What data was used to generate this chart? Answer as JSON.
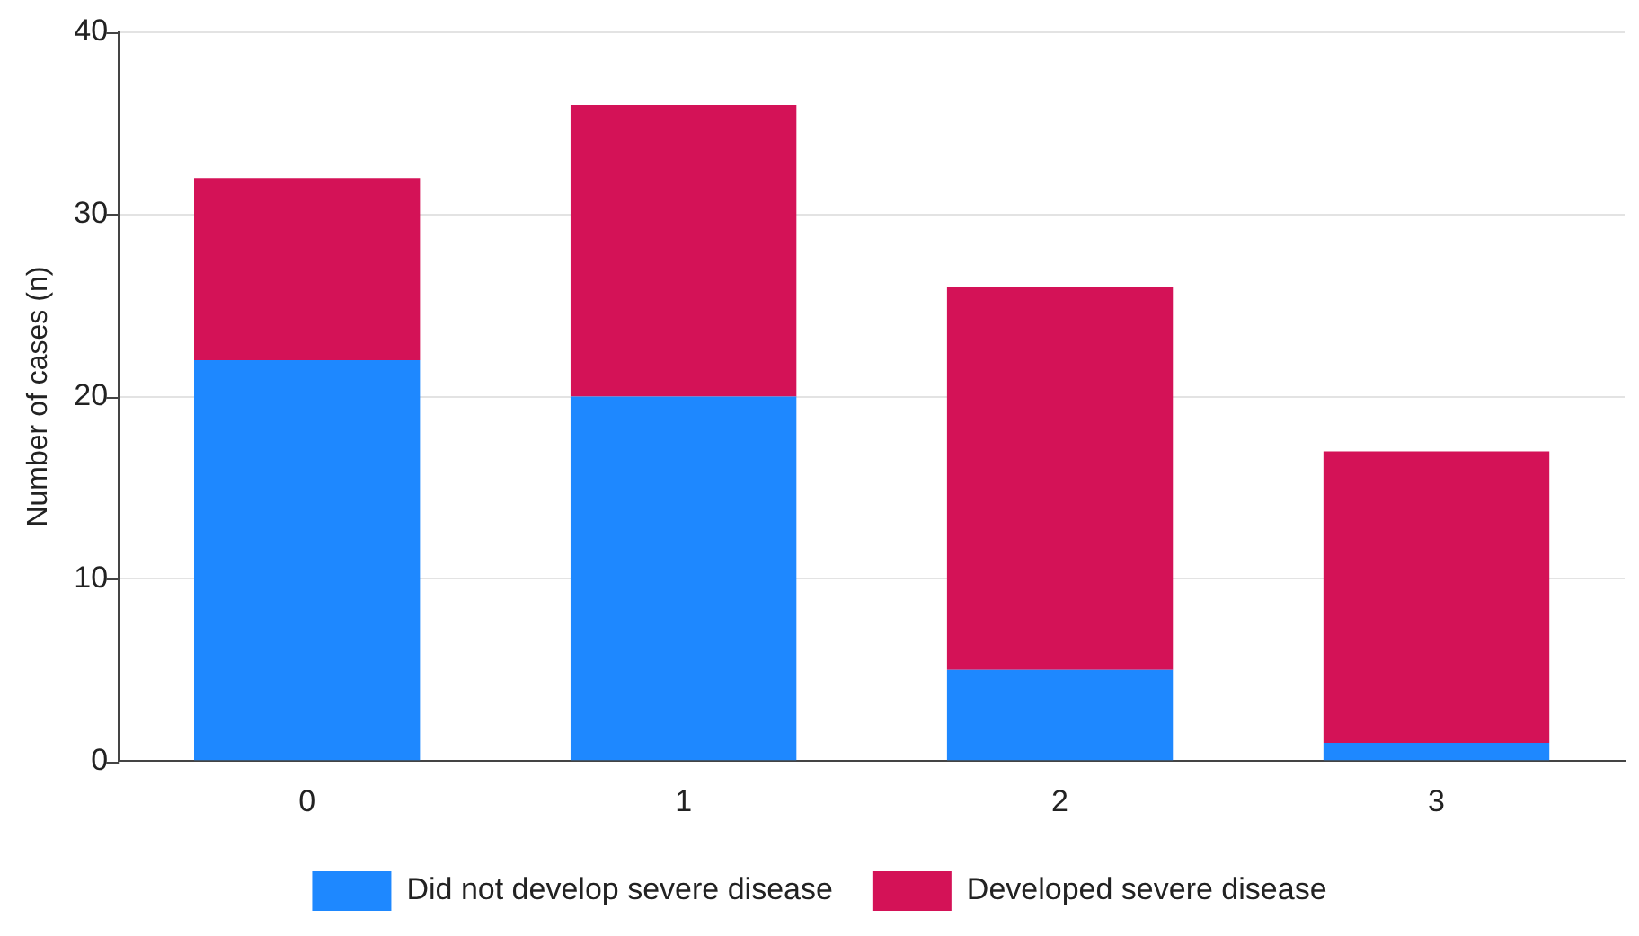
{
  "chart_data": {
    "type": "bar",
    "ylabel": "Number of cases (n)",
    "categories": [
      "0",
      "1",
      "2",
      "3"
    ],
    "series": [
      {
        "name": "Did not develop severe disease",
        "color": "#1e88ff",
        "values": [
          22,
          20,
          5,
          1
        ]
      },
      {
        "name": "Developed severe disease",
        "color": "#d41257",
        "values": [
          10,
          16,
          21,
          16
        ]
      }
    ],
    "stacked": true,
    "ylim": [
      0,
      40
    ],
    "yticks": [
      0,
      10,
      20,
      30,
      40
    ],
    "grid": "y",
    "legend": "bottom"
  }
}
